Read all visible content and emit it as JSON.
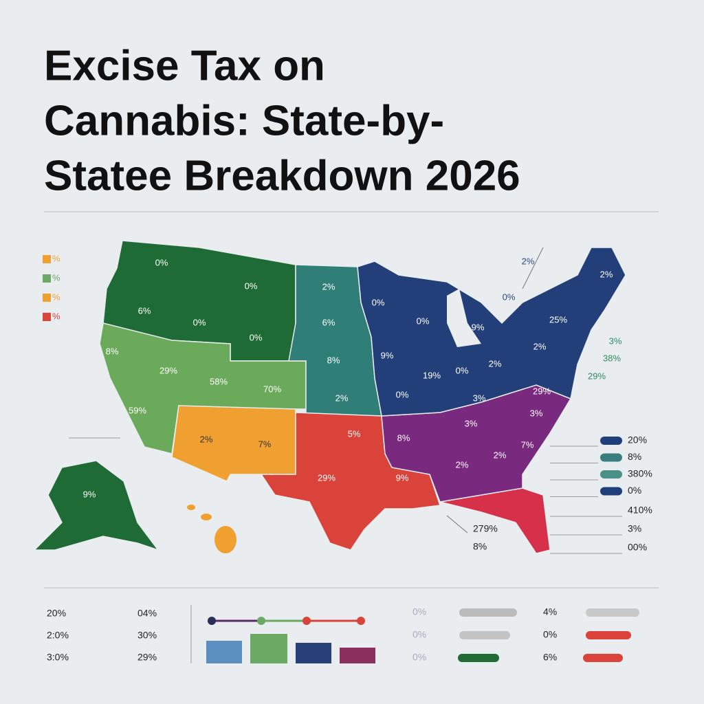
{
  "title": [
    "Excise Tax on",
    "Cannabis:   State-by-",
    "Statee Breakdown 2026"
  ],
  "legend": [
    {
      "label": "%",
      "color": "#f0a030"
    },
    {
      "label": "%",
      "color": "#6aaa64"
    },
    {
      "label": "%",
      "color": "#f0a030"
    },
    {
      "label": "%",
      "color": "#d9433a"
    }
  ],
  "map": {
    "labels": [
      "0%",
      "0%",
      "6%",
      "0%",
      "0%",
      "2%",
      "6%",
      "8%",
      "2%",
      "8%",
      "29%",
      "58%",
      "70%",
      "59%",
      "2%",
      "7%",
      "5%",
      "29%",
      "0%",
      "0%",
      "9%",
      "9%",
      "19%",
      "0%",
      "2%",
      "2%",
      "25%",
      "2%",
      "0%",
      "3%",
      "29%",
      "3%",
      "3%",
      "8%",
      "9%",
      "2%",
      "2%",
      "7%",
      "9%"
    ],
    "callouts": [
      "2%",
      "0%",
      "3%",
      "38%",
      "29%"
    ]
  },
  "side_legend": [
    {
      "label": "20%",
      "color": "#1f3f7a"
    },
    {
      "label": "8%",
      "color": "#3a7f7e"
    },
    {
      "label": "380%",
      "color": "#4a9086"
    },
    {
      "label": "0%",
      "color": "#1f3f7a"
    },
    {
      "label": "410%"
    },
    {
      "label": "3%"
    },
    {
      "label": "00%"
    }
  ],
  "florida_callouts": [
    "279%",
    "8%"
  ],
  "bottom_table": [
    [
      "20%",
      "04%"
    ],
    [
      "2:0%",
      "30%"
    ],
    [
      "3:0%",
      "29%"
    ]
  ],
  "bottom_bars": [
    {
      "left": "0%",
      "right": "4%"
    },
    {
      "left": "0%",
      "right": "0%"
    },
    {
      "left": "0%",
      "right": "6%"
    }
  ]
}
